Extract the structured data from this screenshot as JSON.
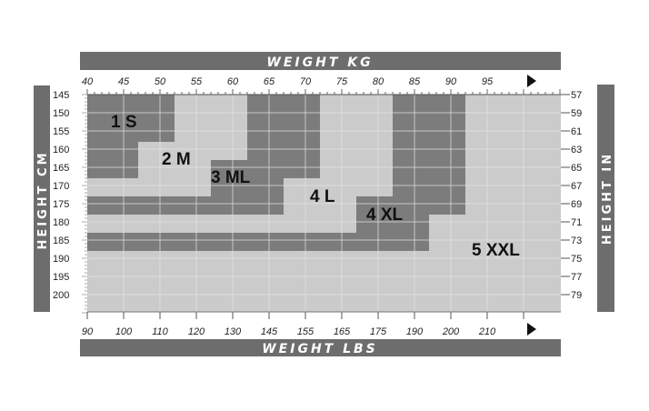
{
  "chart_data": {
    "type": "heatmap",
    "title": "",
    "top_axis": {
      "label": "WEIGHT KG",
      "ticks": [
        40,
        45,
        50,
        55,
        60,
        65,
        70,
        75,
        80,
        85,
        90,
        95
      ],
      "range": [
        40,
        105
      ]
    },
    "bottom_axis": {
      "label": "WEIGHT LBS",
      "ticks": [
        "90",
        "100",
        "110",
        "120",
        "130",
        "145",
        "155",
        "165",
        "175",
        "190",
        "200",
        "210"
      ]
    },
    "left_axis": {
      "label": "HEIGHT CM",
      "ticks": [
        145,
        150,
        155,
        160,
        165,
        170,
        175,
        180,
        185,
        190,
        195,
        200
      ],
      "range": [
        145,
        205
      ]
    },
    "right_axis": {
      "label": "HEIGHT IN",
      "ticks": [
        57,
        59,
        61,
        63,
        65,
        67,
        69,
        71,
        73,
        75,
        77,
        79
      ]
    },
    "colors": {
      "dark": "#7c7c7c",
      "light": "#cbcbcb",
      "header": "#6d6d6d",
      "grid": "#e6e6e6"
    },
    "sizes": [
      {
        "name": "1 S",
        "shade": "dark",
        "regions_kg_cm": [
          [
            40,
            52,
            145,
            158
          ],
          [
            40,
            47,
            158,
            168
          ]
        ]
      },
      {
        "name": "2 M",
        "shade": "light",
        "regions_kg_cm": [
          [
            52,
            62,
            145,
            163
          ],
          [
            47,
            57,
            158,
            173
          ],
          [
            40,
            57,
            168,
            173
          ]
        ]
      },
      {
        "name": "3 ML",
        "shade": "dark",
        "regions_kg_cm": [
          [
            62,
            72,
            145,
            168
          ],
          [
            57,
            67,
            163,
            178
          ],
          [
            40,
            57,
            173,
            178
          ]
        ]
      },
      {
        "name": "4 L",
        "shade": "light",
        "regions_kg_cm": [
          [
            72,
            82,
            145,
            173
          ],
          [
            67,
            77,
            168,
            183
          ],
          [
            40,
            77,
            178,
            183
          ]
        ]
      },
      {
        "name": "4 XL",
        "shade": "dark",
        "regions_kg_cm": [
          [
            82,
            92,
            145,
            178
          ],
          [
            77,
            87,
            173,
            188
          ],
          [
            40,
            87,
            183,
            188
          ]
        ]
      },
      {
        "name": "5 XXL",
        "shade": "light",
        "regions_kg_cm": [
          [
            92,
            105,
            145,
            205
          ],
          [
            87,
            105,
            178,
            205
          ],
          [
            40,
            87,
            188,
            205
          ]
        ]
      }
    ]
  }
}
